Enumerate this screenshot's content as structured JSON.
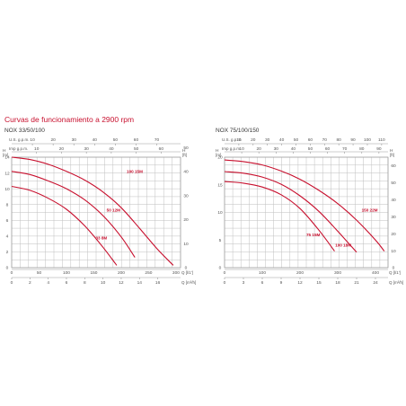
{
  "page": {
    "title": "Curvas de funcionamiento a 2900 rpm"
  },
  "colors": {
    "curve": "#c8102e",
    "grid": "#bfbfbf",
    "frame": "#999999",
    "text": "#555555",
    "title": "#c8102e"
  },
  "chart_data": [
    {
      "type": "line",
      "title": "NOX 33/50/100",
      "grid": true,
      "x_unit_label": "Q [m³/h]",
      "x_ticks": [
        0,
        2,
        4,
        6,
        8,
        10,
        12,
        14,
        16
      ],
      "x_range": [
        0,
        18.5
      ],
      "top_axis_1": {
        "label": "U.S. g.p.m.",
        "ticks": [
          "10",
          "20",
          "30",
          "40",
          "50",
          "60",
          "70"
        ],
        "values": [
          10,
          20,
          30,
          40,
          50,
          60,
          70
        ]
      },
      "top_axis_2": {
        "label": "Imp g.p.m.",
        "ticks": [
          "10",
          "20",
          "30",
          "40",
          "50",
          "60"
        ],
        "values": [
          10,
          20,
          30,
          40,
          50,
          60
        ]
      },
      "bottom_axis_2": {
        "label": "Q [l/1']",
        "ticks": [
          "0",
          "50",
          "100",
          "150",
          "200",
          "250",
          "300"
        ],
        "values": [
          0,
          50,
          100,
          150,
          200,
          250,
          300
        ]
      },
      "y_left": {
        "label": "H [m]",
        "ticks": [
          0,
          2,
          4,
          6,
          8,
          10,
          12,
          14
        ],
        "range": [
          0,
          14
        ]
      },
      "y_right": {
        "label": "H [ft]",
        "ticks": [
          0,
          10,
          20,
          30,
          40,
          50
        ],
        "range": [
          0,
          46
        ]
      },
      "series": [
        {
          "name": "33 8M",
          "points": [
            [
              0,
              10.3
            ],
            [
              2,
              9.8
            ],
            [
              4,
              8.8
            ],
            [
              6,
              7.4
            ],
            [
              8,
              5.3
            ],
            [
              10,
              2.6
            ],
            [
              11.5,
              0.3
            ]
          ]
        },
        {
          "name": "50 12M",
          "points": [
            [
              0,
              12.2
            ],
            [
              2,
              11.8
            ],
            [
              4,
              11.0
            ],
            [
              6,
              10.0
            ],
            [
              8,
              8.6
            ],
            [
              10,
              6.6
            ],
            [
              12,
              3.9
            ],
            [
              13.5,
              1.3
            ]
          ]
        },
        {
          "name": "100 15M",
          "points": [
            [
              0,
              14.0
            ],
            [
              2,
              13.7
            ],
            [
              4,
              13.1
            ],
            [
              6,
              12.2
            ],
            [
              8,
              11.1
            ],
            [
              10,
              9.6
            ],
            [
              12,
              7.6
            ],
            [
              14,
              5.0
            ],
            [
              16,
              2.3
            ],
            [
              17.7,
              0.3
            ]
          ]
        }
      ]
    },
    {
      "type": "line",
      "title": "NOX 75/100/150",
      "grid": true,
      "x_unit_label": "Q [m³/h]",
      "x_ticks": [
        0,
        3,
        6,
        9,
        12,
        15,
        18,
        21,
        24
      ],
      "x_range": [
        0,
        26
      ],
      "top_axis_1": {
        "label": "U.S. g.p.m.",
        "ticks": [
          "10",
          "20",
          "30",
          "40",
          "50",
          "60",
          "70",
          "80",
          "90",
          "100",
          "110"
        ],
        "values": [
          10,
          20,
          30,
          40,
          50,
          60,
          70,
          80,
          90,
          100,
          110
        ]
      },
      "top_axis_2": {
        "label": "Imp g.p.m.",
        "ticks": [
          "10",
          "20",
          "30",
          "40",
          "50",
          "60",
          "70",
          "80",
          "90"
        ],
        "values": [
          10,
          20,
          30,
          40,
          50,
          60,
          70,
          80,
          90
        ]
      },
      "bottom_axis_2": {
        "label": "Q [l/1']",
        "ticks": [
          "0",
          "100",
          "200",
          "300",
          "400"
        ],
        "values": [
          0,
          100,
          200,
          300,
          400
        ]
      },
      "y_left": {
        "label": "H [m]",
        "ticks": [
          0,
          5,
          10,
          15,
          20
        ],
        "range": [
          0,
          20
        ]
      },
      "y_right": {
        "label": "H [ft]",
        "ticks": [
          0,
          10,
          20,
          30,
          40,
          50,
          60
        ],
        "range": [
          0,
          65
        ]
      },
      "series": [
        {
          "name": "75 15M",
          "points": [
            [
              0,
              15.6
            ],
            [
              3,
              15.3
            ],
            [
              6,
              14.6
            ],
            [
              9,
              13.2
            ],
            [
              12,
              10.7
            ],
            [
              15,
              6.8
            ],
            [
              17.5,
              3.0
            ]
          ]
        },
        {
          "name": "100 18M",
          "points": [
            [
              0,
              17.4
            ],
            [
              3,
              17.1
            ],
            [
              6,
              16.4
            ],
            [
              9,
              15.1
            ],
            [
              12,
              13.0
            ],
            [
              15,
              10.2
            ],
            [
              18,
              6.6
            ],
            [
              21,
              2.8
            ]
          ]
        },
        {
          "name": "150 22M",
          "points": [
            [
              0,
              19.5
            ],
            [
              3,
              19.2
            ],
            [
              6,
              18.6
            ],
            [
              9,
              17.5
            ],
            [
              12,
              16.0
            ],
            [
              15,
              14.0
            ],
            [
              18,
              11.6
            ],
            [
              21,
              8.6
            ],
            [
              24,
              5.0
            ],
            [
              25.4,
              3.0
            ]
          ]
        }
      ]
    }
  ]
}
